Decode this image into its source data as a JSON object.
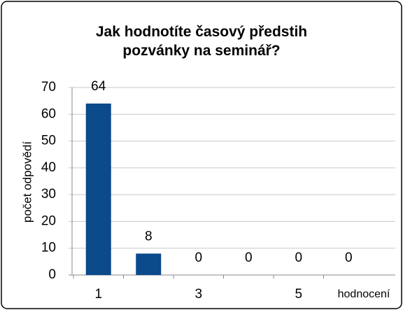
{
  "chart_data": {
    "type": "bar",
    "title": "Jak hodnotíte časový předstih pozvánky na seminář?",
    "categories": [
      "1",
      null,
      "3",
      null,
      "5",
      null
    ],
    "values": [
      64,
      8,
      0,
      0,
      0,
      0
    ],
    "color": "#0b4a8b",
    "ylim": [
      0,
      70
    ],
    "yticks": [
      0,
      10,
      20,
      30,
      40,
      50,
      60,
      70
    ],
    "grid": true,
    "y_label": "počet odpovědí",
    "x_label": "hodnocení"
  }
}
